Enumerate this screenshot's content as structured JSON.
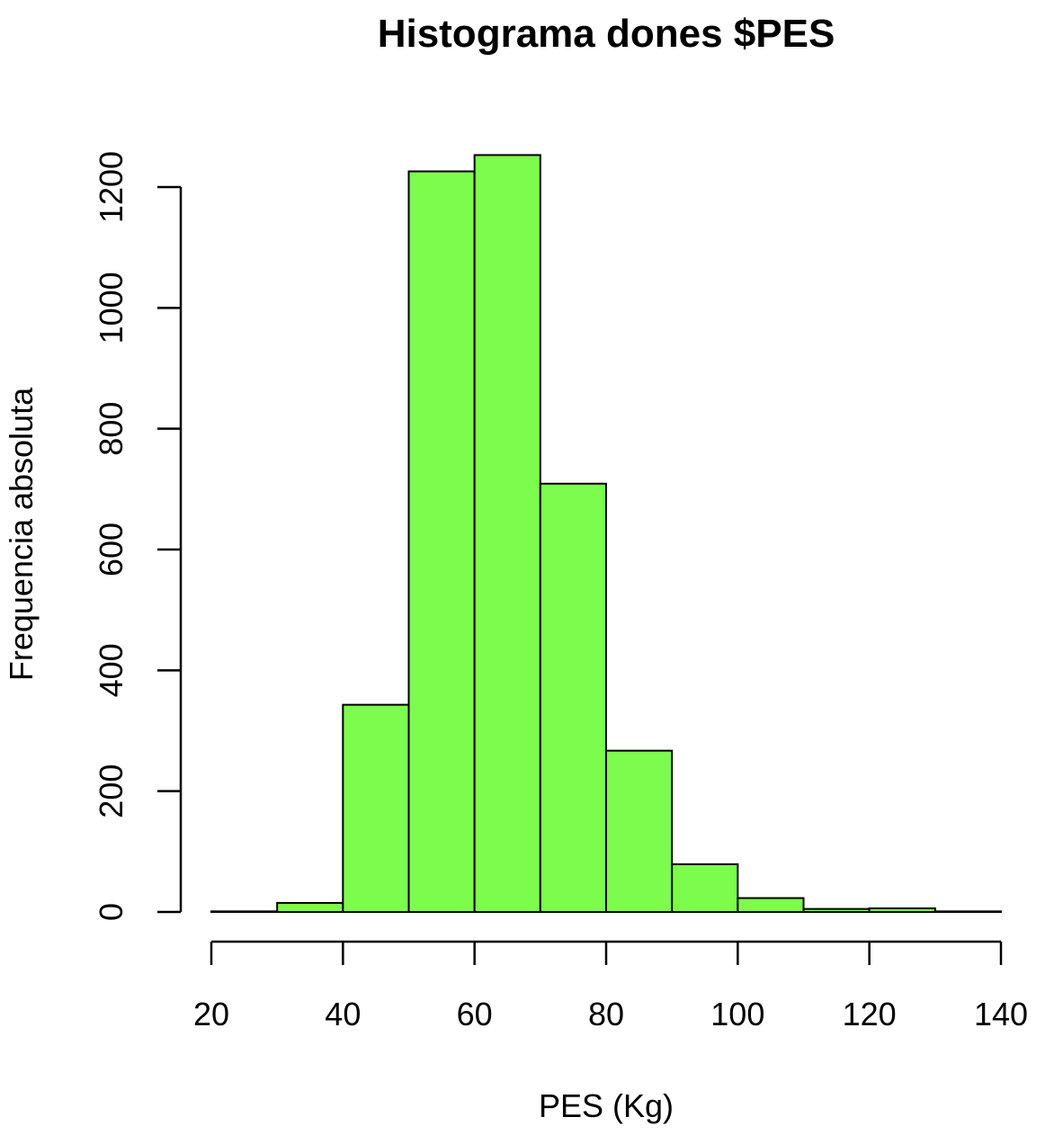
{
  "chart_data": {
    "type": "bar",
    "title": "Histograma dones $PES",
    "xlabel": "PES (Kg)",
    "ylabel": "Frequencia absoluta",
    "bar_color": "#7CFC4C",
    "edge_color": "#000000",
    "bins": [
      {
        "start": 20,
        "end": 30,
        "count": 1
      },
      {
        "start": 30,
        "end": 40,
        "count": 15
      },
      {
        "start": 40,
        "end": 50,
        "count": 343
      },
      {
        "start": 50,
        "end": 60,
        "count": 1226
      },
      {
        "start": 60,
        "end": 70,
        "count": 1253
      },
      {
        "start": 70,
        "end": 80,
        "count": 709
      },
      {
        "start": 80,
        "end": 90,
        "count": 267
      },
      {
        "start": 90,
        "end": 100,
        "count": 79
      },
      {
        "start": 100,
        "end": 110,
        "count": 23
      },
      {
        "start": 110,
        "end": 120,
        "count": 5
      },
      {
        "start": 120,
        "end": 130,
        "count": 6
      },
      {
        "start": 130,
        "end": 140,
        "count": 1
      }
    ],
    "xlim": [
      20,
      140
    ],
    "ylim": [
      0,
      1200
    ],
    "x_ticks": [
      "20",
      "40",
      "60",
      "80",
      "100",
      "120",
      "140"
    ],
    "y_ticks": [
      "0",
      "200",
      "400",
      "600",
      "800",
      "1000",
      "1200"
    ],
    "grid": false,
    "legend": "none"
  }
}
